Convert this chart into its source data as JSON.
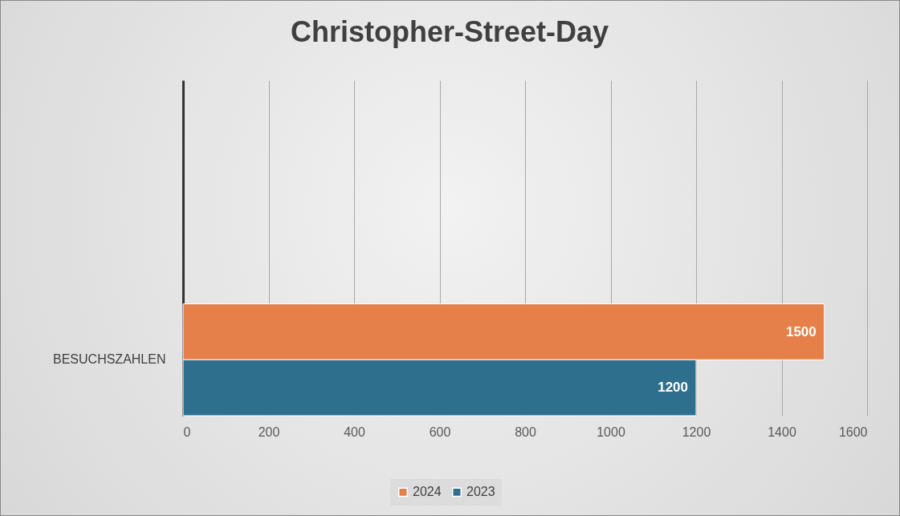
{
  "chart_data": {
    "type": "bar",
    "orientation": "horizontal",
    "title": "Christopher-Street-Day",
    "categories": [
      "BESUCHSZAHLEN"
    ],
    "series": [
      {
        "name": "2024",
        "color": "#e5804a",
        "values": [
          1500
        ]
      },
      {
        "name": "2023",
        "color": "#2e6f8e",
        "values": [
          1200
        ]
      }
    ],
    "xlim": [
      0,
      1600
    ],
    "xticks": [
      0,
      200,
      400,
      600,
      800,
      {
        "value": 1000,
        "label": "1000"
      },
      {
        "value": 1200,
        "label": "1200"
      },
      {
        "value": 1400,
        "label": "1400"
      },
      {
        "value": 1600,
        "label": "1600"
      }
    ],
    "grid": "x",
    "legend": "bottom",
    "data_labels": true
  }
}
